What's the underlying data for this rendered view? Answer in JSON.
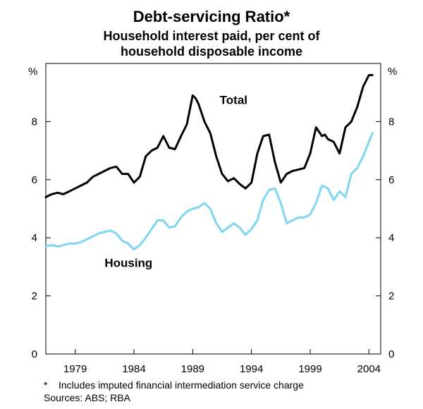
{
  "chart_data": {
    "type": "line",
    "title": "Debt-servicing Ratio*",
    "subtitle_lines": [
      "Household interest paid, per cent of",
      "household disposable income"
    ],
    "ylabel_left": "%",
    "ylabel_right": "%",
    "ylim": [
      0,
      10
    ],
    "yticks": [
      0,
      2,
      4,
      6,
      8
    ],
    "xlim": [
      1976.5,
      2005.0
    ],
    "xticks": [
      1979,
      1984,
      1989,
      1994,
      1999,
      2004
    ],
    "xtick_labels": [
      "1979",
      "1984",
      "1989",
      "1994",
      "1999",
      "2004"
    ],
    "series": [
      {
        "name": "Total",
        "color": "#000000",
        "x": [
          1976.5,
          1977.0,
          1977.5,
          1978.0,
          1978.5,
          1979.0,
          1979.5,
          1980.0,
          1980.5,
          1981.0,
          1981.5,
          1982.0,
          1982.5,
          1983.0,
          1983.5,
          1984.0,
          1984.5,
          1985.0,
          1985.5,
          1986.0,
          1986.5,
          1987.0,
          1987.5,
          1988.0,
          1988.5,
          1989.0,
          1989.25,
          1989.5,
          1990.0,
          1990.5,
          1991.0,
          1991.5,
          1992.0,
          1992.5,
          1993.0,
          1993.5,
          1994.0,
          1994.5,
          1995.0,
          1995.5,
          1996.0,
          1996.5,
          1997.0,
          1997.5,
          1998.0,
          1998.5,
          1999.0,
          1999.5,
          2000.0,
          2000.25,
          2000.5,
          2001.0,
          2001.5,
          2002.0,
          2002.5,
          2003.0,
          2003.5,
          2004.0,
          2004.3
        ],
        "values": [
          5.4,
          5.5,
          5.55,
          5.5,
          5.6,
          5.7,
          5.8,
          5.9,
          6.1,
          6.2,
          6.3,
          6.4,
          6.45,
          6.2,
          6.2,
          5.9,
          6.1,
          6.8,
          7.0,
          7.1,
          7.5,
          7.1,
          7.05,
          7.5,
          7.9,
          8.9,
          8.8,
          8.6,
          8.0,
          7.6,
          6.8,
          6.2,
          5.95,
          6.05,
          5.85,
          5.7,
          5.9,
          6.9,
          7.5,
          7.55,
          6.6,
          5.9,
          6.2,
          6.3,
          6.35,
          6.4,
          6.9,
          7.8,
          7.5,
          7.55,
          7.4,
          7.3,
          6.9,
          7.8,
          8.0,
          8.5,
          9.2,
          9.6,
          9.6
        ]
      },
      {
        "name": "Housing",
        "color": "#7fd6f0",
        "x": [
          1976.5,
          1977.0,
          1977.5,
          1978.0,
          1978.5,
          1979.0,
          1979.5,
          1980.0,
          1980.5,
          1981.0,
          1981.5,
          1982.0,
          1982.5,
          1983.0,
          1983.5,
          1984.0,
          1984.5,
          1985.0,
          1985.5,
          1986.0,
          1986.5,
          1987.0,
          1987.5,
          1988.0,
          1988.5,
          1989.0,
          1989.5,
          1990.0,
          1990.5,
          1991.0,
          1991.5,
          1992.0,
          1992.5,
          1993.0,
          1993.5,
          1994.0,
          1994.5,
          1995.0,
          1995.5,
          1996.0,
          1996.5,
          1997.0,
          1997.5,
          1998.0,
          1998.5,
          1999.0,
          1999.5,
          2000.0,
          2000.5,
          2001.0,
          2001.5,
          2002.0,
          2002.5,
          2003.0,
          2003.5,
          2004.0,
          2004.3
        ],
        "values": [
          3.7,
          3.75,
          3.7,
          3.75,
          3.8,
          3.8,
          3.85,
          3.95,
          4.05,
          4.15,
          4.2,
          4.25,
          4.15,
          3.9,
          3.8,
          3.6,
          3.75,
          4.0,
          4.3,
          4.6,
          4.6,
          4.35,
          4.4,
          4.7,
          4.9,
          5.0,
          5.05,
          5.2,
          5.0,
          4.5,
          4.2,
          4.35,
          4.5,
          4.35,
          4.1,
          4.3,
          4.6,
          5.3,
          5.65,
          5.7,
          5.2,
          4.5,
          4.6,
          4.7,
          4.7,
          4.8,
          5.2,
          5.8,
          5.7,
          5.3,
          5.6,
          5.4,
          6.2,
          6.4,
          6.8,
          7.3,
          7.6
        ]
      }
    ],
    "annotations": [
      {
        "text": "Total",
        "x": 1991.3,
        "y": 8.6
      },
      {
        "text": "Housing",
        "x": 1981.5,
        "y": 3.0
      }
    ],
    "footnotes": [
      "*    Includes imputed financial intermediation service charge",
      "Sources: ABS; RBA"
    ]
  }
}
